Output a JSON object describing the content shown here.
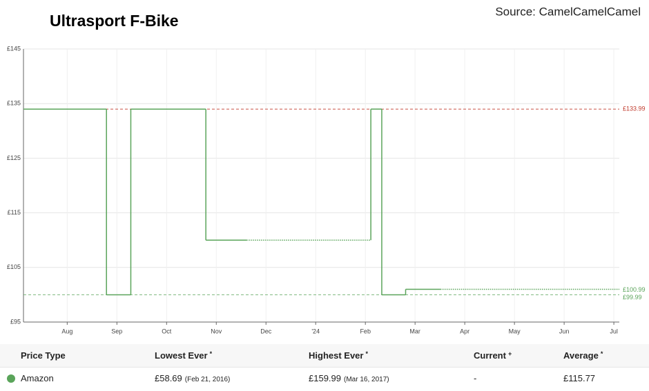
{
  "chart_data": {
    "type": "step",
    "title": "Ultrasport F-Bike",
    "source": "Source: CamelCamelCamel",
    "x": [
      0.12,
      1.79,
      2.28,
      3.79,
      4.61,
      7.11,
      7.33,
      7.81,
      8.51,
      12.11
    ],
    "series": [
      {
        "name": "Amazon",
        "color": "#5aa45a",
        "values": [
          133.99,
          99.99,
          133.99,
          109.99,
          null,
          133.99,
          99.99,
          100.99,
          null,
          null
        ]
      },
      {
        "color": "#5aa45a",
        "style": "dotted",
        "values": [
          null,
          null,
          null,
          null,
          109.99,
          null,
          null,
          null,
          100.99,
          null
        ]
      }
    ],
    "xlim": [
      0.12,
      12.11
    ],
    "xticks": [
      {
        "value": 1,
        "label": "Aug"
      },
      {
        "value": 2,
        "label": "Sep"
      },
      {
        "value": 3,
        "label": "Oct"
      },
      {
        "value": 4,
        "label": "Nov"
      },
      {
        "value": 5,
        "label": "Dec"
      },
      {
        "value": 6,
        "label": "'24"
      },
      {
        "value": 7,
        "label": "Feb"
      },
      {
        "value": 8,
        "label": "Mar"
      },
      {
        "value": 9,
        "label": "Apr"
      },
      {
        "value": 10,
        "label": "May"
      },
      {
        "value": 11,
        "label": "Jun"
      },
      {
        "value": 12,
        "label": "Jul"
      }
    ],
    "ylim": [
      95,
      145
    ],
    "yticks": [
      {
        "value": 95,
        "label": "£95"
      },
      {
        "value": 105,
        "label": "£105"
      },
      {
        "value": 115,
        "label": "£115"
      },
      {
        "value": 125,
        "label": "£125"
      },
      {
        "value": 135,
        "label": "£135"
      },
      {
        "value": 145,
        "label": "£145"
      }
    ],
    "grid": true,
    "reference_lines": [
      {
        "value": 133.99,
        "label": "£133.99",
        "color": "#c0392b"
      },
      {
        "value": 99.99,
        "label": "£99.99",
        "color": "#5aa45a"
      }
    ],
    "current_label": {
      "value": 100.99,
      "label": "£100.99",
      "color": "#5aa45a"
    }
  },
  "table": {
    "header": [
      "Price Type",
      "Lowest Ever",
      "Highest Ever",
      "Current",
      "Average"
    ],
    "header_marks": [
      null,
      "*",
      "*",
      "+",
      "*"
    ],
    "rows": [
      {
        "color": "#5aa45a",
        "cells": [
          "Amazon",
          "£58.69",
          "£159.99",
          "-",
          "£115.77"
        ],
        "notes": [
          null,
          "(Feb 21, 2016)",
          "(Mar 16, 2017)",
          null,
          null
        ]
      }
    ]
  }
}
